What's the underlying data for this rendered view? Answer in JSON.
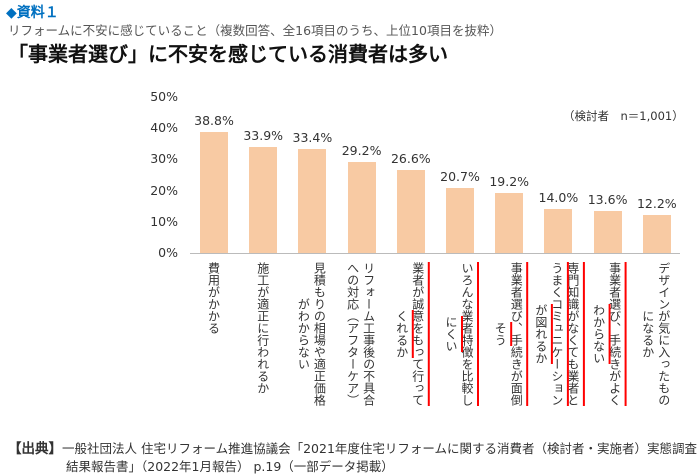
{
  "label": "◆資料１",
  "subtitle": "リフォームに不安に感じていること（複数回答、全16項目のうち、上位10項目を抜粋）",
  "headline": "「事業者選び」に不安を感じている消費者は多い",
  "source": {
    "tag": "【出典】",
    "line1": "一般社団法人 住宅リフォーム推進協議会「2021年度住宅リフォームに関する消費者（検討者・実施者）実態調査",
    "line2": "結果報告書」（2022年1月報告） p.19（一部データ掲載）"
  },
  "chart_data": {
    "type": "bar",
    "note": "（検討者　n＝1,001）",
    "ylim": [
      0,
      50
    ],
    "yticks": [
      "0%",
      "10%",
      "20%",
      "30%",
      "40%",
      "50%"
    ],
    "bar_color": "#f8caa3",
    "highlight_color": "#ff0000",
    "categories": [
      {
        "lines": [
          "費用がかかる"
        ],
        "highlight": false
      },
      {
        "lines": [
          "施工が適正に行われるか"
        ],
        "highlight": false
      },
      {
        "lines": [
          "見積もりの相場や適正価格",
          "がわからない"
        ],
        "highlight": false
      },
      {
        "lines": [
          "リフォーム工事後の不具合",
          "への対応（アフターケア）"
        ],
        "highlight": false
      },
      {
        "lines": [
          "業者が誠意をもって行って",
          "くれるか"
        ],
        "highlight": true
      },
      {
        "lines": [
          "いろんな業者特徴を比較し",
          "にくい"
        ],
        "highlight": true
      },
      {
        "lines": [
          "事業者選び、手続きが面倒",
          "そう"
        ],
        "highlight": true
      },
      {
        "lines": [
          "専門知識がなくても業者と",
          "うまくコミュニケーション",
          "が図れるか"
        ],
        "highlight": true
      },
      {
        "lines": [
          "事業者選び、手続きがよく",
          "わからない"
        ],
        "highlight": true
      },
      {
        "lines": [
          "デザインが気に入ったもの",
          "になるか"
        ],
        "highlight": false
      }
    ],
    "values": [
      38.8,
      33.9,
      33.4,
      29.2,
      26.6,
      20.7,
      19.2,
      14.0,
      13.6,
      12.2
    ],
    "value_labels": [
      "38.8%",
      "33.9%",
      "33.4%",
      "29.2%",
      "26.6%",
      "20.7%",
      "19.2%",
      "14.0%",
      "13.6%",
      "12.2%"
    ]
  }
}
